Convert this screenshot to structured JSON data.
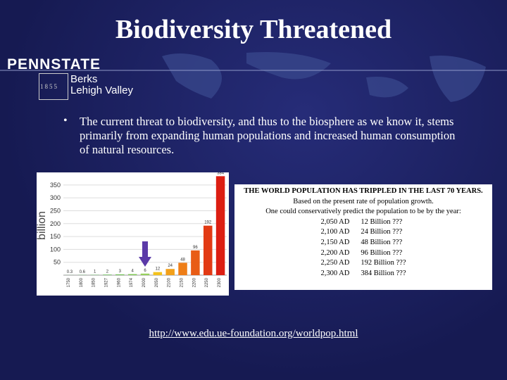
{
  "header": {
    "title": "Biodiversity Threatened",
    "logo": {
      "name": "PENNSTATE",
      "year": "1855",
      "campus_1": "Berks",
      "campus_2": "Lehigh Valley"
    }
  },
  "bullet": "The current threat to biodiversity, and thus to the biosphere as we know it, stems primarily from expanding human populations and increased human consumption of natural resources.",
  "figure": {
    "type": "bar",
    "ylabel": "billion",
    "categories": [
      "1750",
      "1800",
      "1850",
      "1927",
      "1960",
      "1974",
      "2000",
      "2050",
      "2100",
      "2150",
      "2200",
      "2250",
      "2300"
    ],
    "values": [
      0.3,
      0.6,
      1,
      2,
      3,
      4,
      6,
      12,
      24,
      48,
      96,
      192,
      384
    ],
    "colors": [
      "#2e9e3a",
      "#3aa83e",
      "#48b044",
      "#5ab84a",
      "#6cc050",
      "#80c856",
      "#96d05c",
      "#f3c21e",
      "#f2a01a",
      "#ee7e18",
      "#e85c16",
      "#e23a14",
      "#dc1e12"
    ],
    "ylim": [
      0,
      385
    ],
    "yticks": [
      50,
      100,
      150,
      200,
      250,
      300,
      350
    ]
  },
  "box": {
    "heading": "THE WORLD POPULATION HAS TRIPPLED IN THE LAST 70 YEARS.",
    "line_1": "Based on the present rate of population growth.",
    "line_2": "One could conservatively predict the population to be by the year:",
    "rows": [
      [
        "2,050 AD",
        "12 Billion ???"
      ],
      [
        "2,100 AD",
        "24 Billion ???"
      ],
      [
        "2,150 AD",
        "48 Billion ???"
      ],
      [
        "2,200 AD",
        "96 Billion ???"
      ],
      [
        "2,250 AD",
        "192 Billion ???"
      ],
      [
        "2,300 AD",
        "384 Billion ???"
      ]
    ]
  },
  "link": "http://www.edu.ue-foundation.org/worldpop.html"
}
